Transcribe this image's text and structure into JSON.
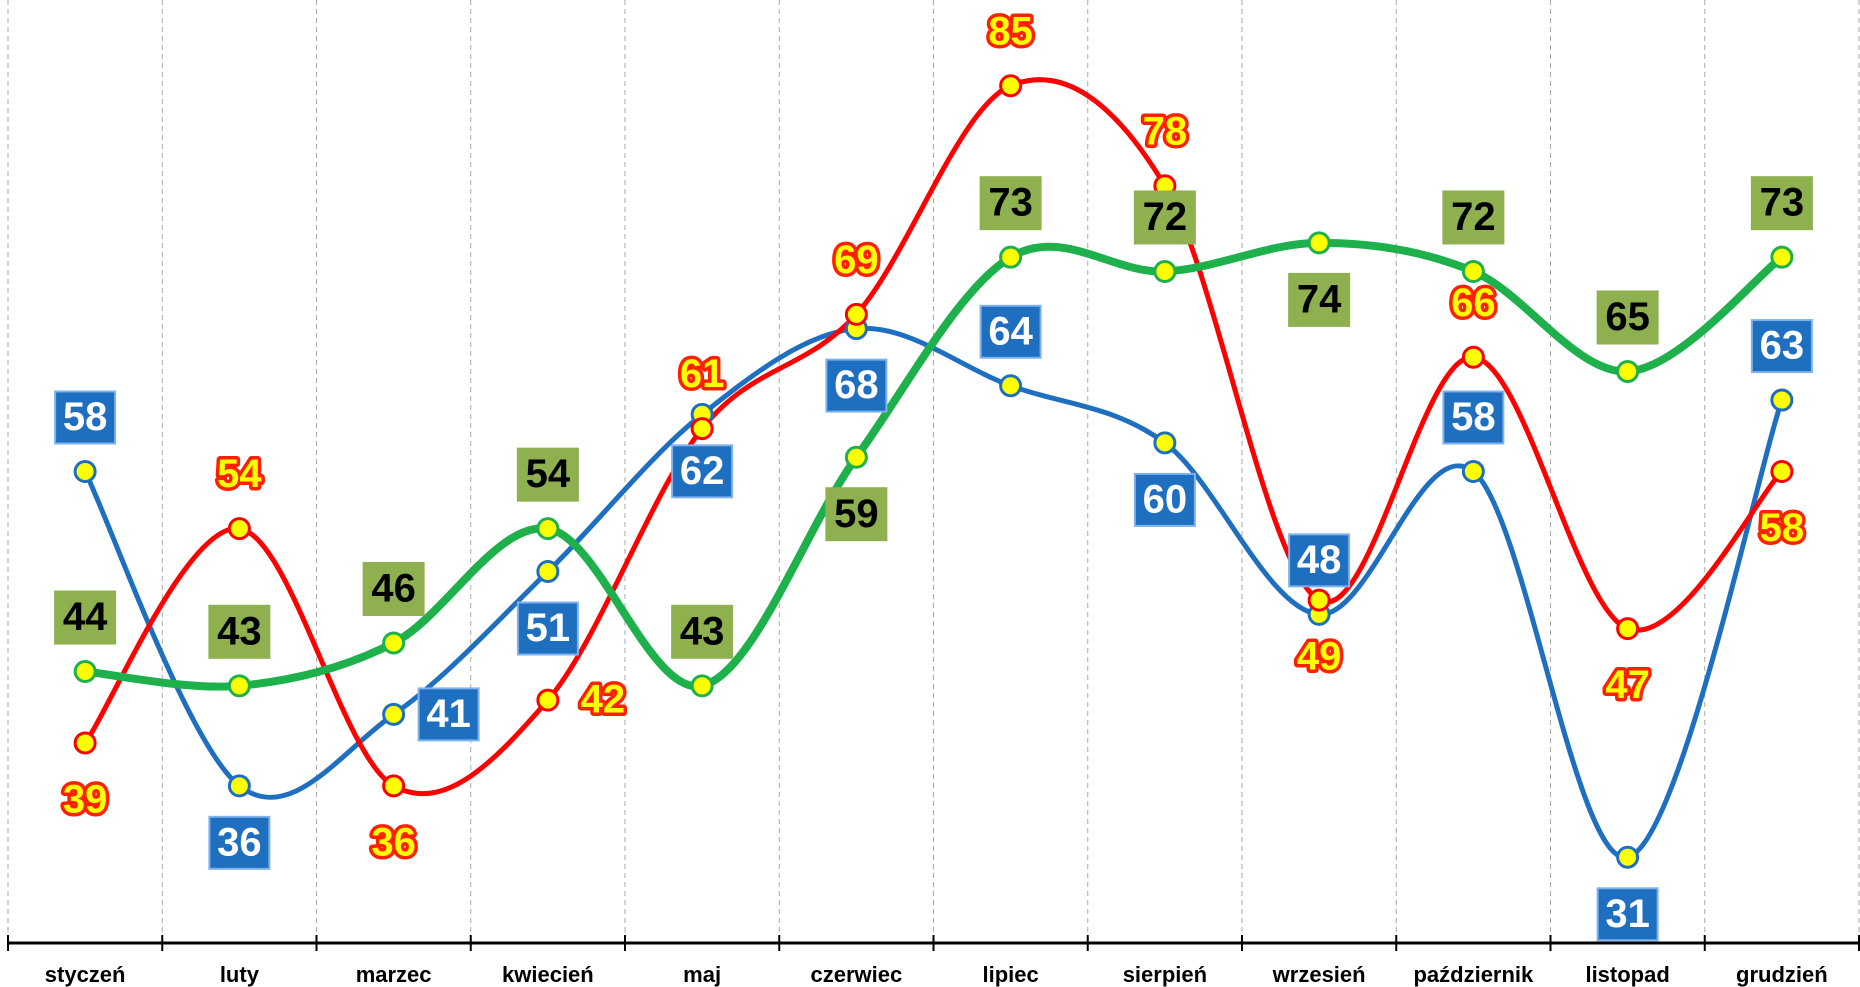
{
  "chart_data": {
    "type": "line",
    "categories": [
      "styczeń",
      "luty",
      "marzec",
      "kwiecień",
      "maj",
      "czerwiec",
      "lipiec",
      "sierpień",
      "wrzesień",
      "październik",
      "listopad",
      "grudzień"
    ],
    "series": [
      {
        "color": "#1f6fc1",
        "values": [
          58,
          36,
          41,
          51,
          62,
          68,
          64,
          60,
          48,
          58,
          31,
          63
        ]
      },
      {
        "color": "#ff0000",
        "values": [
          39,
          54,
          36,
          42,
          61,
          69,
          85,
          78,
          49,
          66,
          47,
          58
        ]
      },
      {
        "color": "#1db04b",
        "values": [
          44,
          43,
          46,
          54,
          43,
          59,
          73,
          72,
          74,
          72,
          65,
          73
        ]
      }
    ],
    "ylim": [
      25,
      91
    ],
    "grid": true
  }
}
